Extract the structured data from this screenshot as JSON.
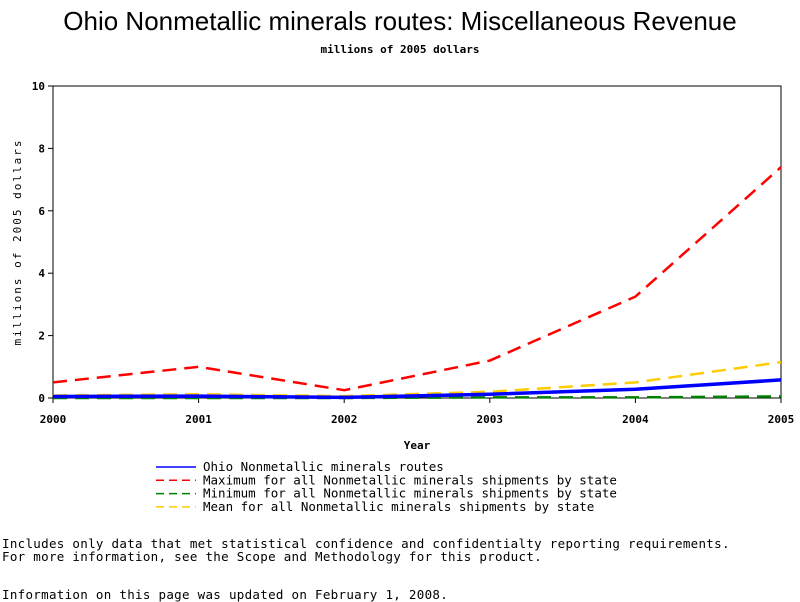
{
  "chart_data": {
    "type": "line",
    "title": "Ohio Nonmetallic minerals routes: Miscellaneous Revenue",
    "subtitle": "millions of 2005 dollars",
    "xlabel": "Year",
    "ylabel": "millions of 2005 dollars",
    "x": [
      "2000",
      "2001",
      "2002",
      "2003",
      "2004",
      "2005"
    ],
    "ylim": [
      0,
      10
    ],
    "yticks": [
      "0",
      "2",
      "4",
      "6",
      "8",
      "10"
    ],
    "grid": false,
    "legend_position": "bottom",
    "series": [
      {
        "name": "Ohio Nonmetallic minerals routes",
        "values": [
          0.05,
          0.06,
          0.02,
          0.12,
          0.28,
          0.58
        ],
        "color": "#0000ff",
        "dash": "solid"
      },
      {
        "name": "Maximum for all Nonmetallic minerals shipments by state",
        "values": [
          0.5,
          1.0,
          0.25,
          1.2,
          3.25,
          7.4
        ],
        "color": "#ff0000",
        "dash": "dashed"
      },
      {
        "name": "Minimum for all Nonmetallic minerals shipments by state",
        "values": [
          0.0,
          0.0,
          0.0,
          0.02,
          0.02,
          0.05
        ],
        "color": "#007f00",
        "dash": "dashed"
      },
      {
        "name": "Mean for all Nonmetallic minerals shipments by state",
        "values": [
          0.08,
          0.12,
          0.06,
          0.2,
          0.5,
          1.15
        ],
        "color": "#ffcc00",
        "dash": "dashed"
      }
    ]
  },
  "footnotes": {
    "line1": "Includes only data that met statistical confidence and confidentialty reporting requirements.",
    "line2": "For more information, see the Scope and Methodology for this product.",
    "line3": "Information on this page was updated on February 1, 2008."
  }
}
